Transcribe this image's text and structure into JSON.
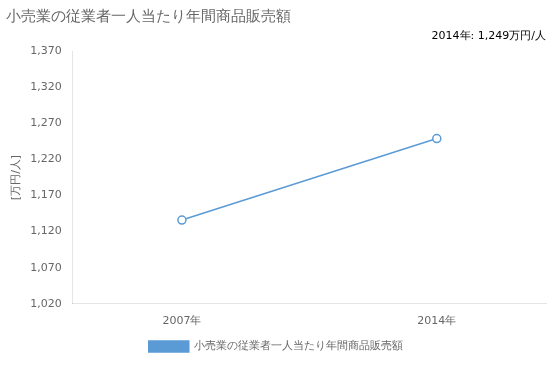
{
  "chart_data": {
    "type": "line",
    "title": "小売業の従業者一人当たり年間商品販売額",
    "ylabel": "[万円/人]",
    "annotation": "2014年: 1,249万円/人",
    "x": [
      2007,
      2014
    ],
    "series": [
      {
        "name": "小売業の従業者一人当たり年間商品販売額",
        "color": "#5B9BD5",
        "values": [
          1136,
          1249
        ],
        "marker": "circle"
      }
    ],
    "xlim": [
      2004,
      2017
    ],
    "xticks": [
      {
        "value": 2007,
        "label": "2007年"
      },
      {
        "value": 2014,
        "label": "2014年"
      }
    ],
    "ylim": [
      1020,
      1370
    ],
    "yticks": [
      {
        "value": 1020,
        "label": "1,020"
      },
      {
        "value": 1070,
        "label": "1,070"
      },
      {
        "value": 1120,
        "label": "1,120"
      },
      {
        "value": 1170,
        "label": "1,170"
      },
      {
        "value": 1220,
        "label": "1,220"
      },
      {
        "value": 1270,
        "label": "1,270"
      },
      {
        "value": 1320,
        "label": "1,320"
      },
      {
        "value": 1370,
        "label": "1,370"
      }
    ],
    "grid": false,
    "legend": "bottom"
  }
}
